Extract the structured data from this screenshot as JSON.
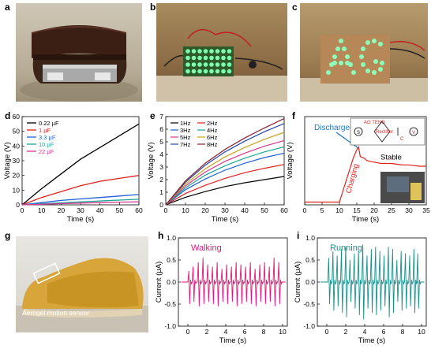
{
  "panel_letters": [
    "a",
    "b",
    "c",
    "d",
    "e",
    "f",
    "g",
    "h",
    "i"
  ],
  "photos": {
    "c_text": "AG",
    "g_label": "Aerogel motion sensor"
  },
  "colors": {
    "black": "#000000",
    "red": "#e0201b",
    "blue": "#1f5fd6",
    "teal": "#1aa59a",
    "magenta": "#d6398f",
    "purple": "#7b3fa8",
    "pink": "#e8137e",
    "teal2": "#17928f",
    "discharged_blue": "#1f78c8"
  },
  "chart_data": [
    {
      "id": "d",
      "type": "line",
      "ylabel": "Voltage (V)",
      "xlabel": "Time (s)",
      "xlim": [
        0,
        60
      ],
      "ylim": [
        0,
        60
      ],
      "xticks": [
        0,
        10,
        20,
        30,
        40,
        50,
        60
      ],
      "yticks": [
        0,
        10,
        20,
        30,
        40,
        50,
        60
      ],
      "legend": "top-left",
      "series": [
        {
          "name": "0.22 μF",
          "color": "#000000",
          "x": [
            0,
            10,
            20,
            30,
            40,
            50,
            60
          ],
          "values": [
            0,
            11,
            21,
            31,
            39,
            47,
            55
          ]
        },
        {
          "name": "1 μF",
          "color": "#e0201b",
          "x": [
            0,
            10,
            20,
            30,
            40,
            50,
            60
          ],
          "values": [
            0,
            5,
            9,
            13,
            16,
            18,
            20
          ]
        },
        {
          "name": "3.3 μF",
          "color": "#1f5fd6",
          "x": [
            0,
            10,
            20,
            30,
            40,
            50,
            60
          ],
          "values": [
            0,
            1.5,
            3,
            4,
            5,
            6,
            7
          ]
        },
        {
          "name": "10 μF",
          "color": "#1aa59a",
          "x": [
            0,
            10,
            20,
            30,
            40,
            50,
            60
          ],
          "values": [
            0,
            0.7,
            1.4,
            2,
            2.6,
            3.2,
            3.8
          ]
        },
        {
          "name": "22 μF",
          "color": "#d6398f",
          "x": [
            0,
            10,
            20,
            30,
            40,
            50,
            60
          ],
          "values": [
            0,
            0.4,
            0.8,
            1.2,
            1.5,
            1.8,
            2.1
          ]
        }
      ]
    },
    {
      "id": "e",
      "type": "line",
      "ylabel": "Voltage (V)",
      "xlabel": "Time (s)",
      "xlim": [
        0,
        60
      ],
      "ylim": [
        0,
        7
      ],
      "xticks": [
        0,
        10,
        20,
        30,
        40,
        50,
        60
      ],
      "yticks": [
        0,
        1,
        2,
        3,
        4,
        5,
        6,
        7
      ],
      "legend": "top-left",
      "series": [
        {
          "name": "1Hz",
          "color": "#000000",
          "x": [
            0,
            10,
            20,
            30,
            40,
            50,
            60
          ],
          "values": [
            0,
            0.6,
            1.05,
            1.45,
            1.75,
            2.0,
            2.25
          ]
        },
        {
          "name": "2Hz",
          "color": "#e0201b",
          "x": [
            0,
            10,
            20,
            30,
            40,
            50,
            60
          ],
          "values": [
            0,
            0.9,
            1.55,
            2.1,
            2.55,
            2.9,
            3.2
          ]
        },
        {
          "name": "3Hz",
          "color": "#1f5fd6",
          "x": [
            0,
            10,
            20,
            30,
            40,
            50,
            60
          ],
          "values": [
            0,
            1.2,
            2.05,
            2.75,
            3.3,
            3.75,
            4.1
          ]
        },
        {
          "name": "4Hz",
          "color": "#1aa59a",
          "x": [
            0,
            10,
            20,
            30,
            40,
            50,
            60
          ],
          "values": [
            0,
            1.35,
            2.35,
            3.1,
            3.7,
            4.2,
            4.6
          ]
        },
        {
          "name": "5Hz",
          "color": "#d6398f",
          "x": [
            0,
            10,
            20,
            30,
            40,
            50,
            60
          ],
          "values": [
            0,
            1.5,
            2.6,
            3.45,
            4.1,
            4.65,
            5.1
          ]
        },
        {
          "name": "6Hz",
          "color": "#c8a21e",
          "x": [
            0,
            10,
            20,
            30,
            40,
            50,
            60
          ],
          "values": [
            0,
            1.65,
            2.85,
            3.8,
            4.55,
            5.2,
            5.75
          ]
        },
        {
          "name": "7Hz",
          "color": "#2848a8",
          "x": [
            0,
            10,
            20,
            30,
            40,
            50,
            60
          ],
          "values": [
            0,
            1.8,
            3.15,
            4.2,
            5.05,
            5.8,
            6.45
          ]
        },
        {
          "name": "8Hz",
          "color": "#8a2030",
          "x": [
            0,
            10,
            20,
            30,
            40,
            50,
            60
          ],
          "values": [
            0,
            1.9,
            3.3,
            4.4,
            5.3,
            6.1,
            6.85
          ]
        }
      ]
    },
    {
      "id": "f",
      "type": "line",
      "ylabel": "Voltage (V)",
      "xlabel": "Time (s)",
      "xlim": [
        0,
        35
      ],
      "ylim": [
        0,
        3.2
      ],
      "xticks": [
        0,
        5,
        10,
        15,
        20,
        25,
        30,
        35
      ],
      "annotations": [
        "Discharged",
        "Charging",
        "Stable"
      ],
      "circuit_labels": [
        "AG TENG",
        "Rectifier",
        "C",
        "V",
        "S"
      ],
      "inset_photo_note": "Ⓜ",
      "series": [
        {
          "name": "",
          "color": "#e0201b",
          "x": [
            0,
            5,
            10,
            11,
            12,
            13,
            14,
            15,
            15.5,
            16,
            17,
            18,
            20,
            22,
            25,
            28,
            30,
            33,
            35
          ],
          "values": [
            0.1,
            0.1,
            0.1,
            0.5,
            0.9,
            1.3,
            1.7,
            2.0,
            2.1,
            1.75,
            1.7,
            1.6,
            1.55,
            1.5,
            1.5,
            1.45,
            1.45,
            1.4,
            1.4
          ]
        }
      ]
    },
    {
      "id": "h",
      "type": "line",
      "title": "Walking",
      "ylabel": "Current (μA)",
      "xlabel": "Time (s)",
      "xlim": [
        -1,
        10.5
      ],
      "ylim": [
        -1.0,
        1.0
      ],
      "xticks": [
        0,
        2,
        4,
        6,
        8,
        10
      ],
      "yticks": [
        -1.0,
        -0.5,
        0.0,
        0.5,
        1.0
      ],
      "color": "#e8137e",
      "series": [
        {
          "name": "",
          "peaks_t": [
            0.1,
            0.55,
            1.1,
            1.6,
            2.1,
            2.6,
            3.1,
            3.6,
            4.1,
            4.6,
            5.1,
            5.6,
            6.1,
            6.6,
            7.1,
            7.6,
            8.1,
            8.6,
            9.1,
            9.6
          ],
          "peak_pos": [
            0.25,
            0.35,
            0.45,
            0.55,
            0.4,
            0.35,
            0.45,
            0.3,
            0.4,
            0.35,
            0.45,
            0.4,
            0.35,
            0.45,
            0.3,
            0.4,
            0.45,
            0.35,
            0.55,
            0.45
          ],
          "peak_neg": [
            -0.5,
            -0.45,
            -0.55,
            -0.5,
            -0.45,
            -0.5,
            -0.55,
            -0.45,
            -0.5,
            -0.45,
            -0.55,
            -0.5,
            -0.45,
            -0.5,
            -0.55,
            -0.45,
            -0.5,
            -0.45,
            -0.55,
            -0.5
          ]
        }
      ]
    },
    {
      "id": "i",
      "type": "line",
      "title": "Running",
      "ylabel": "Current (μA)",
      "xlabel": "Time (s)",
      "xlim": [
        -1,
        10.5
      ],
      "ylim": [
        -1.0,
        1.0
      ],
      "xticks": [
        0,
        2,
        4,
        6,
        8,
        10
      ],
      "yticks": [
        -1.0,
        -0.5,
        0.0,
        0.5,
        1.0
      ],
      "color": "#17928f",
      "series": [
        {
          "name": "",
          "peaks_t": [
            0.2,
            0.65,
            1.1,
            1.55,
            2.0,
            2.45,
            2.9,
            3.35,
            3.8,
            4.25,
            4.7,
            5.15,
            5.6,
            6.05,
            6.5,
            6.95,
            7.4,
            7.85,
            8.3,
            8.75,
            9.2,
            9.6
          ],
          "peak_pos": [
            0.55,
            0.7,
            0.6,
            0.75,
            0.8,
            0.5,
            0.65,
            0.7,
            0.85,
            0.6,
            0.75,
            0.8,
            0.7,
            0.6,
            0.8,
            0.75,
            0.5,
            0.7,
            0.65,
            0.6,
            0.75,
            0.65
          ],
          "peak_neg": [
            -0.5,
            -0.65,
            -0.55,
            -0.7,
            -0.8,
            -0.45,
            -0.6,
            -0.75,
            -0.85,
            -0.6,
            -0.7,
            -0.75,
            -0.65,
            -0.55,
            -0.8,
            -0.7,
            -0.45,
            -0.65,
            -0.6,
            -0.55,
            -0.7,
            -0.6
          ]
        }
      ]
    }
  ]
}
